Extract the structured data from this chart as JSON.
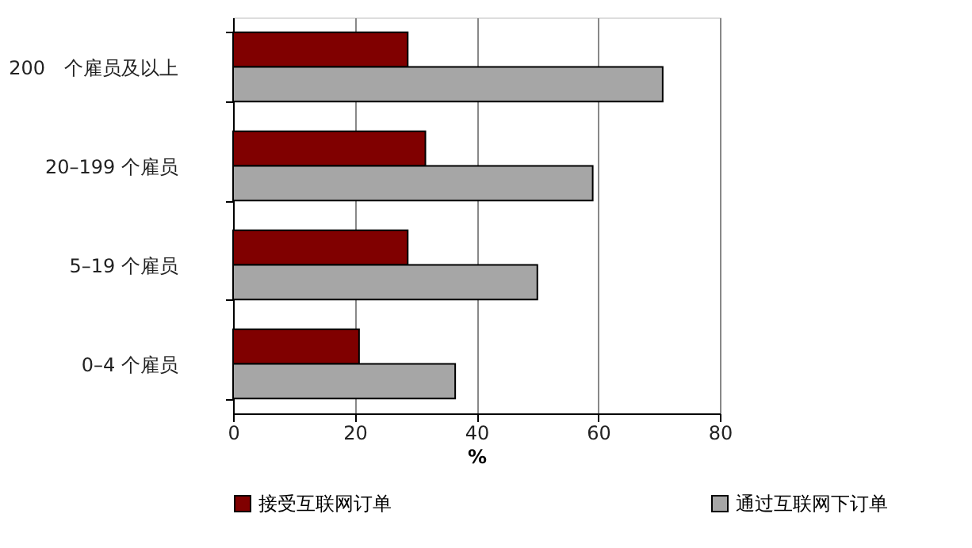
{
  "chart_data": {
    "type": "bar",
    "orientation": "horizontal",
    "xlabel": "%",
    "categories": [
      "200　个雇员及以上",
      "20–199 个雇员",
      "5–19 个雇员",
      "0–4 个雇员"
    ],
    "series": [
      {
        "name": "接受互联网订单",
        "color": "#800000",
        "values": [
          28.7,
          31.6,
          28.7,
          20.7
        ]
      },
      {
        "name": "通过互联网下订单",
        "color": "#a6a6a6",
        "values": [
          70.6,
          59.1,
          50.0,
          36.5
        ]
      }
    ],
    "xlim": [
      0,
      80
    ],
    "xticks": [
      0,
      20,
      40,
      60,
      80
    ],
    "grid": "x",
    "legend": "bottom"
  }
}
